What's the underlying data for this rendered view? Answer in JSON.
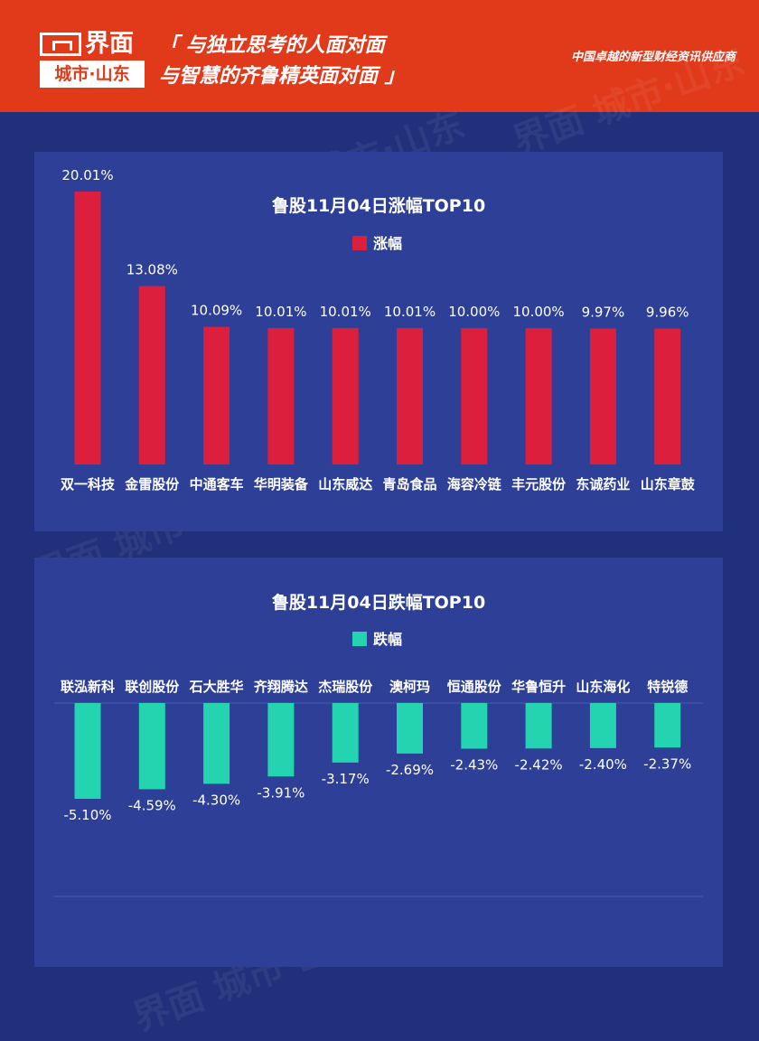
{
  "header": {
    "logo_name": "界面",
    "logo_city": "城市·山东",
    "slogan_line1": "「 与独立思考的人面对面",
    "slogan_line2": "与智慧的齐鲁精英面对面 」",
    "tagline": "中国卓越的新型财经资讯供应商"
  },
  "watermark": "界面 城市·山东",
  "colors": {
    "header": "#e13a1b",
    "background": "#21307a",
    "panel": "#2d3f96",
    "gain": "#dc1f3d",
    "loss": "#24d3b0"
  },
  "chart_data": [
    {
      "type": "bar",
      "title": "鲁股11月04日涨幅TOP10",
      "legend": "涨幅",
      "categories": [
        "双一科技",
        "金雷股份",
        "中通客车",
        "华明装备",
        "山东威达",
        "青岛食品",
        "海容冷链",
        "丰元股份",
        "东诚药业",
        "山东章鼓"
      ],
      "values": [
        20.01,
        13.08,
        10.09,
        10.01,
        10.01,
        10.01,
        10.0,
        10.0,
        9.97,
        9.96
      ],
      "labels": [
        "20.01%",
        "13.08%",
        "10.09%",
        "10.01%",
        "10.01%",
        "10.01%",
        "10.00%",
        "10.00%",
        "9.97%",
        "9.96%"
      ]
    },
    {
      "type": "bar",
      "title": "鲁股11月04日跌幅TOP10",
      "legend": "跌幅",
      "categories": [
        "联泓新科",
        "联创股份",
        "石大胜华",
        "齐翔腾达",
        "杰瑞股份",
        "澳柯玛",
        "恒通股份",
        "华鲁恒升",
        "山东海化",
        "特锐德"
      ],
      "values": [
        -5.1,
        -4.59,
        -4.3,
        -3.91,
        -3.17,
        -2.69,
        -2.43,
        -2.42,
        -2.4,
        -2.37
      ],
      "labels": [
        "-5.10%",
        "-4.59%",
        "-4.30%",
        "-3.91%",
        "-3.17%",
        "-2.69%",
        "-2.43%",
        "-2.42%",
        "-2.40%",
        "-2.37%"
      ]
    }
  ]
}
